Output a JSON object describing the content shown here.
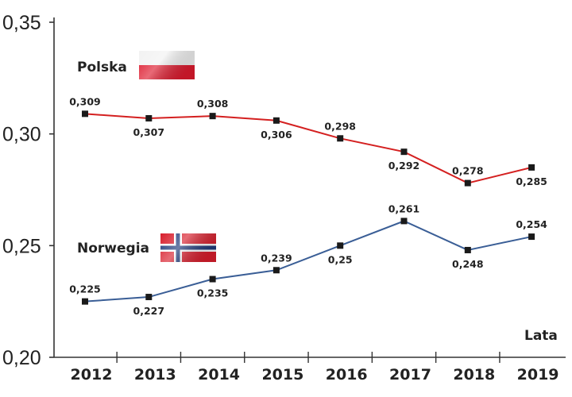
{
  "chart_data": {
    "type": "line",
    "title": "",
    "xlabel": "Lata",
    "ylabel": "",
    "categories": [
      "2012",
      "2013",
      "2014",
      "2015",
      "2016",
      "2017",
      "2018",
      "2019"
    ],
    "ylim": [
      0.2,
      0.35
    ],
    "yticks": [
      0.2,
      0.25,
      0.3,
      0.35
    ],
    "ytick_labels": [
      "0,20",
      "0,25",
      "0,30",
      "0,35"
    ],
    "grid": false,
    "series": [
      {
        "name": "Polska",
        "flag": "poland-flag",
        "color": "#d42020",
        "values": [
          0.309,
          0.307,
          0.308,
          0.306,
          0.298,
          0.292,
          0.278,
          0.285
        ],
        "labels": [
          "0,309",
          "0,307",
          "0,308",
          "0,306",
          "0,298",
          "0,292",
          "0,278",
          "0,285"
        ]
      },
      {
        "name": "Norwegia",
        "flag": "norway-flag",
        "color": "#3a5e96",
        "values": [
          0.225,
          0.227,
          0.235,
          0.239,
          0.25,
          0.261,
          0.248,
          0.254
        ],
        "labels": [
          "0,225",
          "0,227",
          "0,235",
          "0,239",
          "0,25",
          "0,261",
          "0,248",
          "0,254"
        ]
      }
    ]
  }
}
